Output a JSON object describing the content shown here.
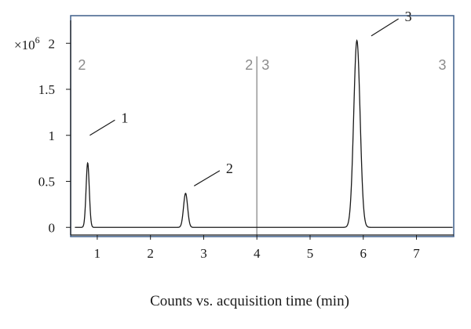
{
  "chart_data": {
    "type": "line",
    "title": "",
    "xlabel": "Counts vs. acquisition time (min)",
    "ylabel": "",
    "y_multiplier": {
      "base": "×10",
      "exponent": "6"
    },
    "xlim": [
      0.5,
      7.7
    ],
    "ylim": [
      -0.1,
      2.3
    ],
    "x_ticks": [
      1,
      2,
      3,
      4,
      5,
      6,
      7
    ],
    "y_ticks": [
      0,
      0.5,
      1,
      1.5,
      2
    ],
    "y_tick_labels": [
      "0",
      "0.5",
      "1",
      "1.5",
      "2"
    ],
    "grid": false,
    "series": [
      {
        "baseline": 0.0,
        "peaks": [
          {
            "label": "1",
            "center": 0.82,
            "height": 0.7,
            "sigma": 0.03
          },
          {
            "label": "2",
            "center": 2.66,
            "height": 0.37,
            "sigma": 0.038
          },
          {
            "label": "3",
            "center": 5.88,
            "height": 2.03,
            "sigma": 0.06
          }
        ]
      }
    ],
    "segment_markers": [
      {
        "x": 0.58,
        "labels": [
          "2"
        ],
        "line": false
      },
      {
        "x": 4.0,
        "labels": [
          "2",
          "3"
        ],
        "line": true
      },
      {
        "x": 7.62,
        "labels": [
          "3"
        ],
        "line": false
      }
    ],
    "annotations": [
      {
        "text": "1",
        "target_x": 0.86,
        "target_y": 1.0,
        "label_x": 1.45,
        "label_y": 1.2
      },
      {
        "text": "2",
        "target_x": 2.82,
        "target_y": 0.45,
        "label_x": 3.42,
        "label_y": 0.65
      },
      {
        "text": "3",
        "target_x": 6.15,
        "target_y": 2.08,
        "label_x": 6.78,
        "label_y": 2.3
      }
    ],
    "colors": {
      "trace": "#1a1a1a",
      "frame": "#3e5f8a",
      "segment": "#9a9a9a",
      "axis": "#1a1a1a"
    }
  }
}
